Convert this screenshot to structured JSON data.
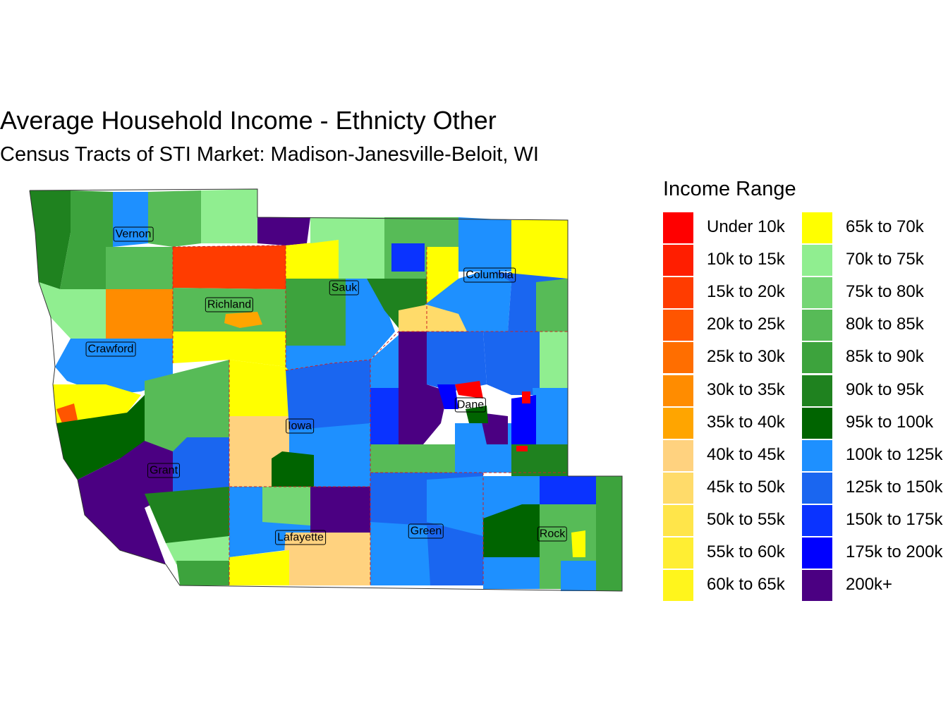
{
  "title": "Average Household Income - Ethnicty Other",
  "subtitle": "Census Tracts of STI Market: Madison-Janesville-Beloit, WI",
  "legend": {
    "title": "Income Range",
    "items": [
      {
        "label": "Under 10k",
        "color": "#FF0000"
      },
      {
        "label": "10k to 15k",
        "color": "#FF1E00"
      },
      {
        "label": "15k to 20k",
        "color": "#FF3C00"
      },
      {
        "label": "20k to 25k",
        "color": "#FF5500"
      },
      {
        "label": "25k to 30k",
        "color": "#FF6E00"
      },
      {
        "label": "30k to 35k",
        "color": "#FF8C00"
      },
      {
        "label": "35k to 40k",
        "color": "#FFA500"
      },
      {
        "label": "40k to 45k",
        "color": "#FFD27F"
      },
      {
        "label": "45k to 50k",
        "color": "#FFDB6A"
      },
      {
        "label": "50k to 55k",
        "color": "#FFE54A"
      },
      {
        "label": "55k to 60k",
        "color": "#FFEE33"
      },
      {
        "label": "60k to 65k",
        "color": "#FFF51C"
      },
      {
        "label": "65k to 70k",
        "color": "#FFFF00"
      },
      {
        "label": "70k to 75k",
        "color": "#90EE90"
      },
      {
        "label": "75k to 80k",
        "color": "#74D674"
      },
      {
        "label": "80k to 85k",
        "color": "#57BB57"
      },
      {
        "label": "85k to 90k",
        "color": "#3DA33D"
      },
      {
        "label": "90k to 95k",
        "color": "#1F821F"
      },
      {
        "label": "95k to 100k",
        "color": "#006400"
      },
      {
        "label": "100k to 125k",
        "color": "#1E90FF"
      },
      {
        "label": "125k to 150k",
        "color": "#1A66F0"
      },
      {
        "label": "150k to 175k",
        "color": "#0A33FF"
      },
      {
        "label": "175k to 200k",
        "color": "#0000FF"
      },
      {
        "label": "200k+",
        "color": "#4B0082"
      }
    ]
  },
  "counties": [
    {
      "name": "Vernon"
    },
    {
      "name": "Richland"
    },
    {
      "name": "Sauk"
    },
    {
      "name": "Columbia"
    },
    {
      "name": "Crawford"
    },
    {
      "name": "Dane"
    },
    {
      "name": "Iowa"
    },
    {
      "name": "Grant"
    },
    {
      "name": "Lafayette"
    },
    {
      "name": "Green"
    },
    {
      "name": "Rock"
    }
  ]
}
